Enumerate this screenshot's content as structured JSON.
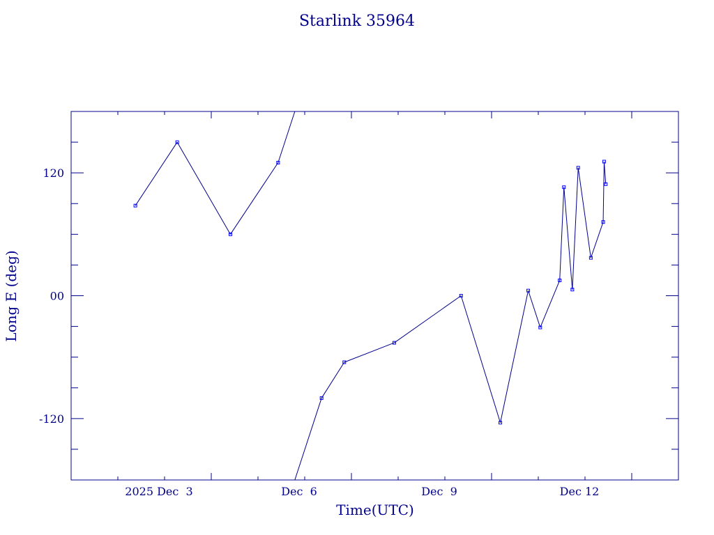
{
  "chart_data": {
    "type": "line",
    "title": "Starlink 35964",
    "xlabel": "Time(UTC)",
    "ylabel": "Long E (deg)",
    "xlim": [
      "2025-12-01T00:00Z",
      "2025-12-14T00:00Z"
    ],
    "ylim": [
      -180,
      180
    ],
    "grid": false,
    "x_tick_labels": [
      {
        "label": "2025 Dec  3",
        "at": "2025-12-03T00:00Z"
      },
      {
        "label": "Dec  6",
        "at": "2025-12-06T00:00Z"
      },
      {
        "label": "Dec  9",
        "at": "2025-12-09T00:00Z"
      },
      {
        "label": "Dec 12",
        "at": "2025-12-12T00:00Z"
      }
    ],
    "y_tick_labels": [
      {
        "label": "120",
        "value": 120
      },
      {
        "label": "00",
        "value": 0
      },
      {
        "label": "-120",
        "value": -120
      }
    ],
    "x": [
      "2025-12-02T09:00Z",
      "2025-12-03T06:30Z",
      "2025-12-04T09:50Z",
      "2025-12-05T10:20Z",
      "2025-12-06T08:40Z",
      "2025-12-06T20:20Z",
      "2025-12-07T22:00Z",
      "2025-12-09T08:20Z",
      "2025-12-10T04:30Z",
      "2025-12-10T18:50Z",
      "2025-12-11T01:00Z",
      "2025-12-11T11:00Z",
      "2025-12-11T13:10Z",
      "2025-12-11T17:30Z",
      "2025-12-11T20:30Z",
      "2025-12-12T03:00Z",
      "2025-12-12T09:20Z",
      "2025-12-12T09:50Z",
      "2025-12-12T10:40Z"
    ],
    "values": [
      88,
      150,
      60,
      130,
      -100,
      -65,
      -46,
      0,
      -124,
      5,
      -31,
      15,
      106,
      6,
      125,
      37,
      72,
      131,
      109
    ]
  }
}
